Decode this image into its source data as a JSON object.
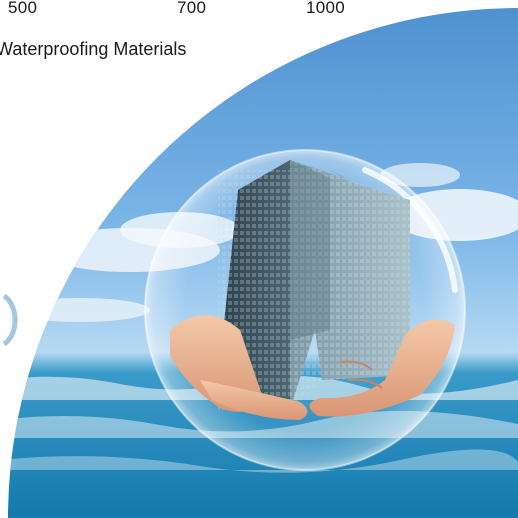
{
  "header": {
    "numbers": [
      "500",
      "700",
      "1000"
    ],
    "caption": "Waterproofing Materials"
  },
  "scene": {
    "icon": "building-in-hands-bubble-photo",
    "colors": {
      "sky_top": "#5f9fd9",
      "sky_mid": "#8ec3ec",
      "sea": "#1e8fc2",
      "cloud": "#f4f8fc"
    }
  }
}
